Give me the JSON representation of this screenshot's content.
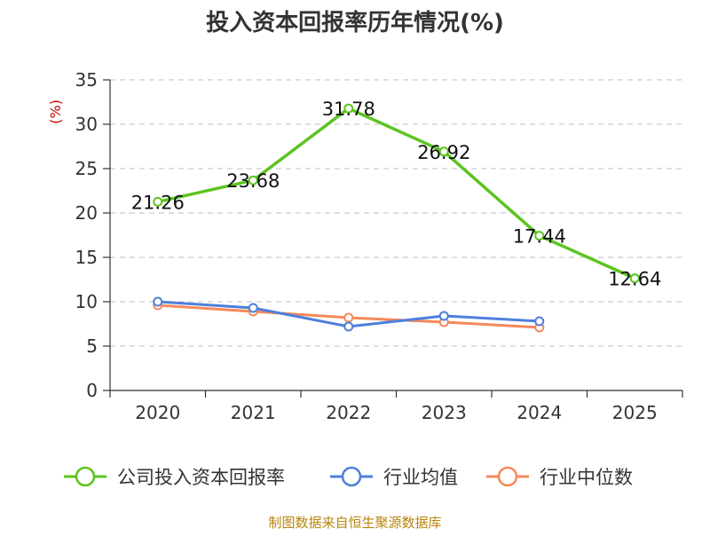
{
  "chart_data": {
    "type": "line",
    "title": "投入资本回报率历年情况(%)",
    "ylabel": "(%)",
    "xlabel": "",
    "categories": [
      "2020",
      "2021",
      "2022",
      "2023",
      "2024",
      "2025"
    ],
    "ylim": [
      0,
      35
    ],
    "yticks": [
      0,
      5,
      10,
      15,
      20,
      25,
      30,
      35
    ],
    "grid": true,
    "legend_position": "bottom",
    "series": [
      {
        "name": "公司投入资本回报率",
        "color": "#5cc41f",
        "values": [
          21.26,
          23.68,
          31.78,
          26.92,
          17.44,
          12.64
        ],
        "labels": [
          "21.26",
          "23.68",
          "31.78",
          "26.92",
          "17.44",
          "12.64"
        ]
      },
      {
        "name": "行业均值",
        "color": "#4e7fdb",
        "values": [
          10.0,
          9.3,
          7.2,
          8.4,
          7.8,
          null
        ],
        "labels": []
      },
      {
        "name": "行业中位数",
        "color": "#f5895a",
        "values": [
          9.6,
          8.9,
          8.2,
          7.7,
          7.1,
          null
        ],
        "labels": []
      }
    ],
    "source": "制图数据来自恒生聚源数据库"
  }
}
